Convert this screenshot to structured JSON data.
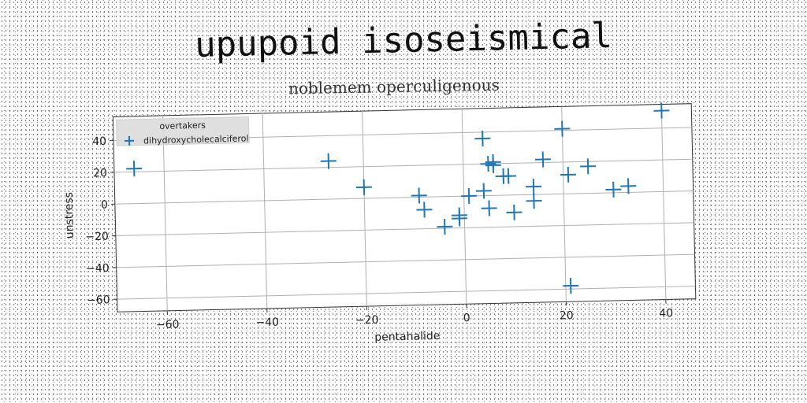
{
  "chart_data": {
    "type": "scatter",
    "title": "upupoid isoseismical",
    "subtitle": "noblemem operculigenous",
    "xlabel": "pentahalide",
    "ylabel": "unstress",
    "xlim": [
      -70,
      46
    ],
    "ylim": [
      -68,
      55
    ],
    "xticks": [
      -60,
      -40,
      -20,
      0,
      20,
      40
    ],
    "yticks": [
      -60,
      -40,
      -20,
      0,
      20,
      40
    ],
    "grid": true,
    "legend_placement": "top-left",
    "legend": [
      "overtakers",
      "dihydroxycholecalciferol"
    ],
    "marker": "+",
    "color": "#1f77b4",
    "series": [
      {
        "name": "dihydroxycholecalciferol",
        "points": [
          {
            "x": -66,
            "y": 22
          },
          {
            "x": -27,
            "y": 24
          },
          {
            "x": -20,
            "y": 7
          },
          {
            "x": -9,
            "y": 1
          },
          {
            "x": -8,
            "y": -8
          },
          {
            "x": -4,
            "y": -19
          },
          {
            "x": -1,
            "y": -12
          },
          {
            "x": -1,
            "y": -14
          },
          {
            "x": 1,
            "y": 0
          },
          {
            "x": 4,
            "y": 36
          },
          {
            "x": 4,
            "y": 3
          },
          {
            "x": 5,
            "y": 20
          },
          {
            "x": 6,
            "y": 21
          },
          {
            "x": 6,
            "y": 19
          },
          {
            "x": 5,
            "y": -8
          },
          {
            "x": 8,
            "y": 12
          },
          {
            "x": 9,
            "y": 12
          },
          {
            "x": 10,
            "y": -11
          },
          {
            "x": 14,
            "y": 5
          },
          {
            "x": 14,
            "y": -4
          },
          {
            "x": 16,
            "y": 22
          },
          {
            "x": 20,
            "y": 41
          },
          {
            "x": 21,
            "y": 12
          },
          {
            "x": 21,
            "y": -58
          },
          {
            "x": 25,
            "y": 17
          },
          {
            "x": 30,
            "y": 2
          },
          {
            "x": 33,
            "y": 4
          },
          {
            "x": 40,
            "y": 51
          }
        ]
      }
    ]
  }
}
